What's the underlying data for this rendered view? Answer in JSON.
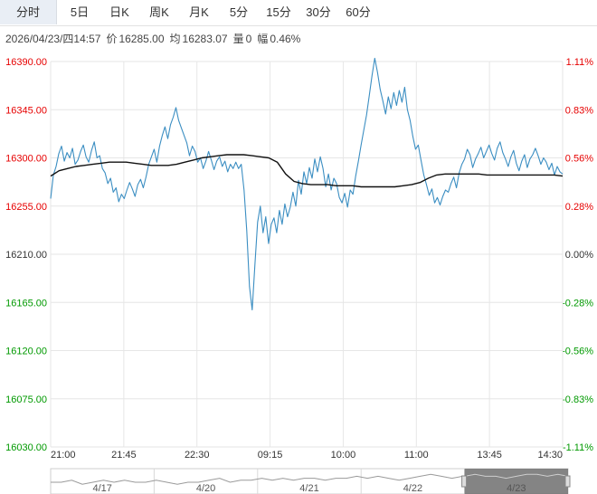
{
  "tabs": [
    {
      "label": "分时",
      "active": true
    },
    {
      "label": "5日",
      "active": false
    },
    {
      "label": "日K",
      "active": false
    },
    {
      "label": "周K",
      "active": false
    },
    {
      "label": "月K",
      "active": false
    },
    {
      "label": "5分",
      "active": false
    },
    {
      "label": "15分",
      "active": false
    },
    {
      "label": "30分",
      "active": false
    },
    {
      "label": "60分",
      "active": false
    }
  ],
  "info": {
    "datetime": "2026/04/23/四14:57",
    "price_label": "价",
    "price": "16285.00",
    "avg_label": "均",
    "avg": "16283.07",
    "volume_label": "量",
    "volume": "0",
    "change_label": "幅",
    "change": "0.46%"
  },
  "colors": {
    "up": "#e60000",
    "down": "#009900",
    "flat": "#333333",
    "price_line": "#3b8ec2",
    "avg_line": "#111111",
    "grid": "#e6e6e6",
    "navigator_mask": "#6e6e6e"
  },
  "chart_data": {
    "type": "line",
    "reference_price": 16210.0,
    "ylim": [
      16030.0,
      16390.0
    ],
    "yticks": [
      "16390.00",
      "16345.00",
      "16300.00",
      "16255.00",
      "16210.00",
      "16165.00",
      "16120.00",
      "16075.00",
      "16030.00"
    ],
    "pct_ticks": [
      "1.11%",
      "0.83%",
      "0.56%",
      "0.28%",
      "0.00%",
      "-0.28%",
      "-0.56%",
      "-0.83%",
      "-1.11%"
    ],
    "xticks": [
      "21:00",
      "21:45",
      "22:30",
      "09:15",
      "10:00",
      "11:00",
      "13:45",
      "14:30"
    ],
    "series": [
      {
        "values": [
          16262,
          16284,
          16292,
          16304,
          16311,
          16297,
          16305,
          16300,
          16309,
          16294,
          16298,
          16306,
          16312,
          16301,
          16296,
          16307,
          16315,
          16300,
          16302,
          16290,
          16286,
          16276,
          16281,
          16268,
          16272,
          16259,
          16266,
          16262,
          16270,
          16277,
          16271,
          16264,
          16275,
          16280,
          16272,
          16282,
          16294,
          16301,
          16308,
          16296,
          16311,
          16321,
          16329,
          16318,
          16331,
          16338,
          16347,
          16335,
          16328,
          16321,
          16314,
          16302,
          16311,
          16306,
          16296,
          16300,
          16290,
          16297,
          16306,
          16298,
          16289,
          16297,
          16301,
          16292,
          16297,
          16287,
          16294,
          16290,
          16296,
          16290,
          16294,
          16270,
          16232,
          16180,
          16158,
          16200,
          16240,
          16255,
          16230,
          16245,
          16220,
          16238,
          16244,
          16230,
          16251,
          16238,
          16257,
          16245,
          16254,
          16268,
          16255,
          16279,
          16266,
          16287,
          16276,
          16291,
          16281,
          16299,
          16287,
          16301,
          16290,
          16273,
          16285,
          16270,
          16281,
          16276,
          16263,
          16258,
          16267,
          16254,
          16270,
          16266,
          16283,
          16297,
          16312,
          16326,
          16340,
          16358,
          16377,
          16393,
          16380,
          16364,
          16353,
          16341,
          16357,
          16346,
          16361,
          16349,
          16363,
          16352,
          16366,
          16345,
          16335,
          16320,
          16308,
          16312,
          16298,
          16284,
          16275,
          16265,
          16271,
          16258,
          16263,
          16256,
          16264,
          16270,
          16268,
          16276,
          16282,
          16272,
          16286,
          16294,
          16299,
          16308,
          16303,
          16291,
          16299,
          16304,
          16310,
          16300,
          16306,
          16312,
          16304,
          16298,
          16309,
          16315,
          16305,
          16299,
          16292,
          16301,
          16307,
          16295,
          16288,
          16297,
          16303,
          16291,
          16299,
          16303,
          16309,
          16302,
          16294,
          16300,
          16296,
          16289,
          16295,
          16284,
          16292,
          16287,
          16285
        ],
        "color_key": "price_line"
      },
      {
        "values": [
          16283,
          16288,
          16290,
          16292,
          16293,
          16294,
          16295,
          16296,
          16296,
          16296,
          16295,
          16294,
          16293,
          16293,
          16293,
          16294,
          16296,
          16298,
          16300,
          16301,
          16302,
          16303,
          16303,
          16303,
          16302,
          16301,
          16300,
          16296,
          16285,
          16278,
          16276,
          16275,
          16275,
          16275,
          16274,
          16274,
          16274,
          16273,
          16273,
          16273,
          16273,
          16273,
          16274,
          16275,
          16277,
          16281,
          16284,
          16285,
          16285,
          16285,
          16285,
          16285,
          16284,
          16284,
          16284,
          16284,
          16284,
          16284,
          16284,
          16284,
          16284,
          16283
        ],
        "color_key": "avg_line"
      }
    ]
  },
  "navigator": {
    "labels": [
      "4/17",
      "4/20",
      "4/21",
      "4/22",
      "4/23"
    ],
    "line": [
      5,
      5,
      4,
      6,
      5,
      4,
      5,
      4,
      5,
      5,
      4,
      5,
      6,
      5,
      5,
      4,
      3,
      5,
      4,
      4,
      3,
      4,
      3,
      4,
      3,
      3,
      4,
      3,
      3,
      2,
      3,
      2,
      3,
      4,
      3,
      2,
      1,
      2,
      3,
      2,
      1,
      2,
      2,
      3,
      2,
      1,
      1,
      2,
      1,
      2
    ],
    "selection_range": [
      0.8,
      1.0
    ]
  }
}
